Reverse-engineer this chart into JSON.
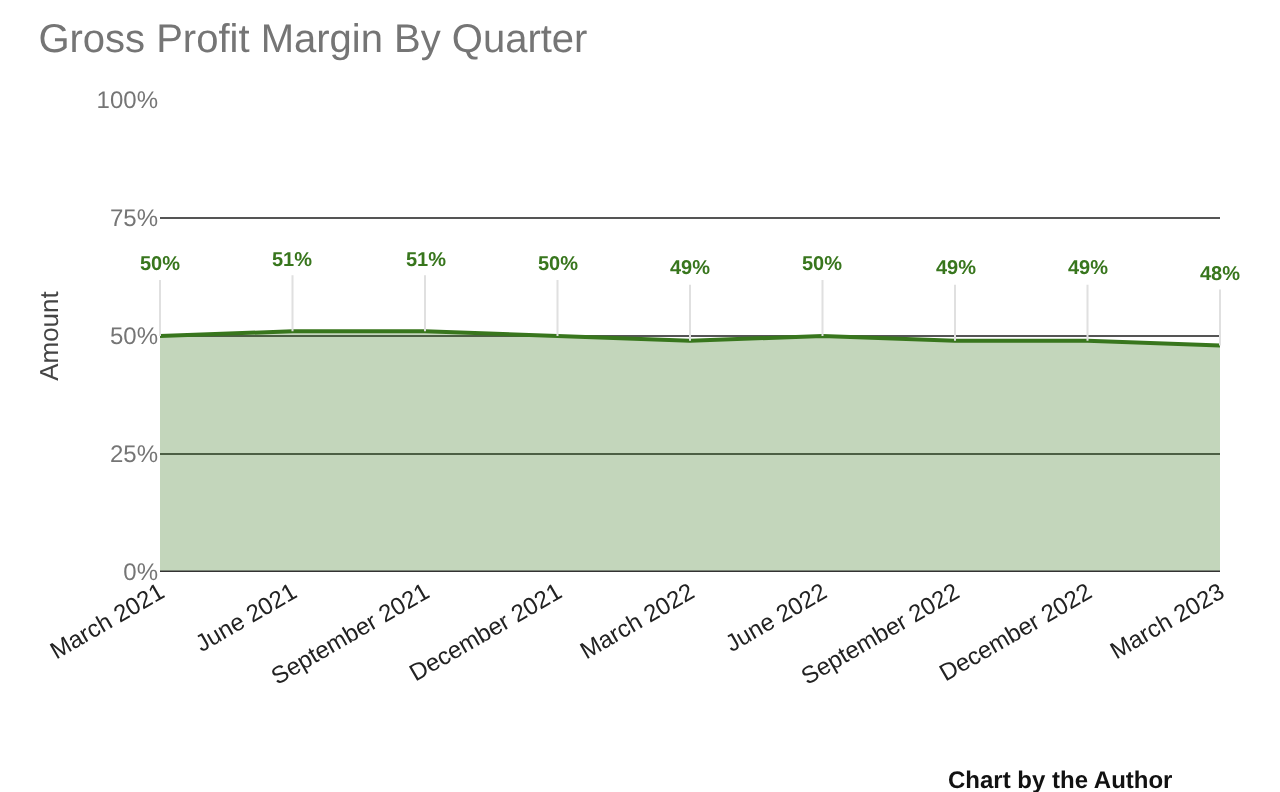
{
  "chart_data": {
    "type": "area",
    "title": "Gross Profit Margin By Quarter",
    "ylabel": "Amount",
    "categories": [
      "March 2021",
      "June 2021",
      "September 2021",
      "December 2021",
      "March 2022",
      "June 2022",
      "September 2022",
      "December 2022",
      "March 2023"
    ],
    "series": [
      {
        "color": "#38761d",
        "values": [
          50,
          51,
          51,
          50,
          49,
          50,
          49,
          49,
          48
        ],
        "value_labels": [
          "50%",
          "51%",
          "51%",
          "50%",
          "49%",
          "50%",
          "49%",
          "49%",
          "48%"
        ]
      }
    ],
    "ylim": [
      0,
      100
    ],
    "yticks": [
      {
        "value": 0,
        "label": "0%"
      },
      {
        "value": 25,
        "label": "25%"
      },
      {
        "value": 50,
        "label": "50%"
      },
      {
        "value": 75,
        "label": "75%"
      },
      {
        "value": 100,
        "label": "100%"
      }
    ],
    "grid": "y",
    "annotations": [
      "Chart by the Author"
    ]
  }
}
